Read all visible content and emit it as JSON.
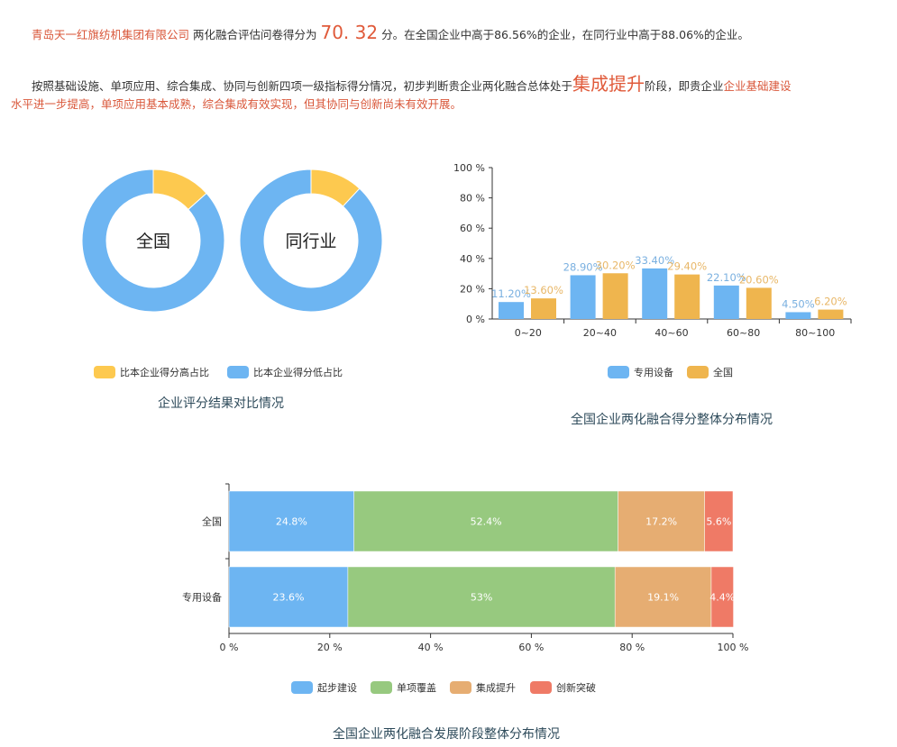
{
  "summary": {
    "company": "青岛天一红旗纺机集团有限公司",
    "s1": " 两化融合评估问卷得分为 ",
    "score": "70. 32",
    "s2": " 分。在全国企业中高于86.56%的企业，在同行业中高于88.06%的企业。",
    "p2a": "按照基础设施、单项应用、综合集成、协同与创新四项一级指标得分情况，初步判断贵企业两化融合总体处于",
    "stage": "集成提升",
    "p2b": "阶段，即贵企业",
    "p2c": "企业基础建设",
    "p2d": "水平进一步提高，单项应用基本成熟，综合集成有效实现，但其协同与创新尚未有效开展。"
  },
  "chart_data": [
    {
      "type": "pie",
      "title": "企业评分结果对比情况",
      "donuts": [
        {
          "label": "全国",
          "values": [
            13.44,
            86.56
          ]
        },
        {
          "label": "同行业",
          "values": [
            11.94,
            88.06
          ]
        }
      ],
      "legend": [
        "比本企业得分高占比",
        "比本企业得分低占比"
      ],
      "colors": [
        "#fdc94f",
        "#6db5f2"
      ],
      "legend_position": "bottom"
    },
    {
      "type": "bar",
      "title": "全国企业两化融合得分整体分布情况",
      "categories": [
        "0~20",
        "20~40",
        "40~60",
        "60~80",
        "80~100"
      ],
      "yticks": [
        "0 %",
        "20 %",
        "40 %",
        "60 %",
        "80 %",
        "100 %"
      ],
      "ylim": [
        0,
        100
      ],
      "series": [
        {
          "name": "专用设备",
          "values": [
            11.2,
            28.9,
            33.4,
            22.1,
            4.5
          ],
          "labels": [
            "11.20%",
            "28.90%",
            "33.40%",
            "22.10%",
            "4.50%"
          ],
          "color": "#6db5f2",
          "label_color": "#7ab0e0"
        },
        {
          "name": "全国",
          "values": [
            13.6,
            30.2,
            29.4,
            20.6,
            6.2
          ],
          "labels": [
            "13.60%",
            "30.20%",
            "29.40%",
            "20.60%",
            "6.20%"
          ],
          "color": "#efb54e",
          "label_color": "#e8b768"
        }
      ],
      "legend_position": "bottom"
    },
    {
      "type": "bar",
      "orientation": "horizontal-stacked",
      "title": "全国企业两化融合发展阶段整体分布情况",
      "categories": [
        "全国",
        "专用设备"
      ],
      "xticks": [
        "0 %",
        "20 %",
        "40 %",
        "60 %",
        "80 %",
        "100 %"
      ],
      "xlim": [
        0,
        100
      ],
      "series": [
        {
          "name": "起步建设",
          "values": [
            24.8,
            23.6
          ],
          "labels": [
            "24.8%",
            "23.6%"
          ],
          "color": "#6db5f2"
        },
        {
          "name": "单项覆盖",
          "values": [
            52.4,
            53
          ],
          "labels": [
            "52.4%",
            "53%"
          ],
          "color": "#97c97f"
        },
        {
          "name": "集成提升",
          "values": [
            17.2,
            19.1
          ],
          "labels": [
            "17.2%",
            "19.1%"
          ],
          "color": "#e6ad72"
        },
        {
          "name": "创新突破",
          "values": [
            5.6,
            4.4
          ],
          "labels": [
            "5.6%",
            "4.4%"
          ],
          "color": "#ef7a66"
        }
      ],
      "legend_position": "bottom"
    }
  ]
}
